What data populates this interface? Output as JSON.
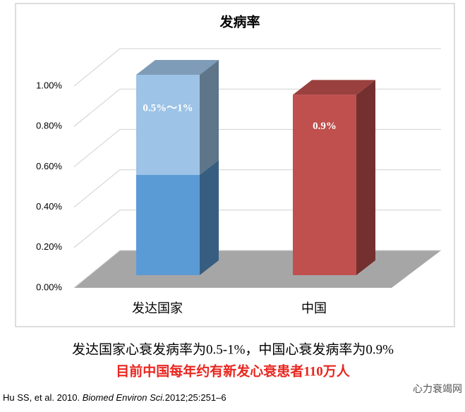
{
  "chart_data": {
    "type": "bar3d",
    "title": "发病率",
    "categories": [
      "发达国家",
      "中国"
    ],
    "series": [
      {
        "colors": [
          "#5b9bd5",
          "#c0504d"
        ],
        "values": [
          0.5,
          0.9
        ],
        "value_labels": [
          null,
          "0.9%"
        ]
      },
      {
        "colors": [
          "#9dc3e6",
          null
        ],
        "values": [
          0.5,
          null
        ]
      }
    ],
    "annotations": [
      "0.5%～1%"
    ],
    "ylim": [
      0,
      1
    ],
    "yticks": [
      {
        "value": 0,
        "label": "0.00%"
      },
      {
        "value": 0.2,
        "label": "0.20%"
      },
      {
        "value": 0.4,
        "label": "0.40%"
      },
      {
        "value": 0.6,
        "label": "0.60%"
      },
      {
        "value": 0.8,
        "label": "0.80%"
      },
      {
        "value": 1,
        "label": "1.00%"
      }
    ],
    "grid": true
  },
  "caption": "发达国家心衰发病率为0.5-1%，中国心衰发病率为0.9%",
  "highlight": "目前中国每年约有新发心衰患者110万人",
  "source": {
    "authors": "Hu SS, et al. 2010. ",
    "journal": "Biomed Environ Sci.",
    "ref": "2012;25:251–6"
  },
  "watermark": "心力衰竭网"
}
